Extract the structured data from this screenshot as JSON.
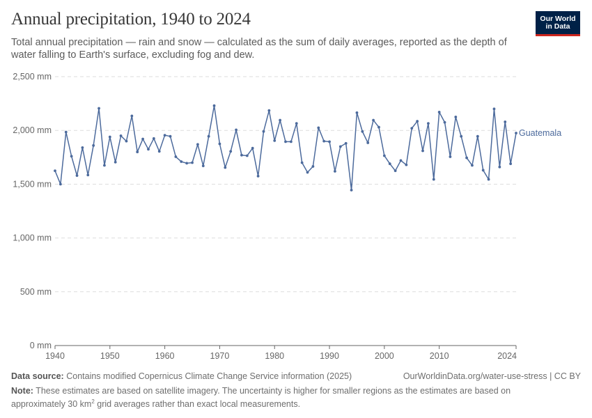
{
  "header": {
    "title": "Annual precipitation, 1940 to 2024",
    "subtitle": "Total annual precipitation — rain and snow — calculated as the sum of daily averages, reported as the depth of water falling to Earth's surface, excluding fog and dew.",
    "logo_line1": "Our World",
    "logo_line2": "in Data"
  },
  "footer": {
    "source_label": "Data source:",
    "source_text": "Contains modified Copernicus Climate Change Service information (2025)",
    "url_text": "OurWorldinData.org/water-use-stress | CC BY",
    "note_label": "Note:",
    "note_text_a": "These estimates are based on satellite imagery. The uncertainty is higher for smaller regions as the estimates are based on approximately 30 km",
    "note_sup": "2",
    "note_text_b": " grid averages rather than exact local measurements."
  },
  "colors": {
    "series": "#4c6a9c",
    "grid": "#dddddd",
    "axis": "#666666",
    "logo_bg": "#002147",
    "logo_accent": "#ce261e"
  },
  "chart_data": {
    "type": "line",
    "title": "Annual precipitation, 1940 to 2024",
    "y_unit": "mm",
    "ylim": [
      0,
      2500
    ],
    "xlim": [
      1940,
      2024
    ],
    "y_ticks": [
      0,
      500,
      1000,
      1500,
      2000,
      2500
    ],
    "y_tick_labels": [
      "0 mm",
      "500 mm",
      "1,000 mm",
      "1,500 mm",
      "2,000 mm",
      "2,500 mm"
    ],
    "x_ticks": [
      1940,
      1950,
      1960,
      1970,
      1980,
      1990,
      2000,
      2010,
      2024
    ],
    "x_tick_labels": [
      "1940",
      "1950",
      "1960",
      "1970",
      "1980",
      "1990",
      "2000",
      "2010",
      "2024"
    ],
    "grid": "horizontal dashed",
    "series": [
      {
        "name": "Guatemala",
        "x": [
          1940,
          1941,
          1942,
          1943,
          1944,
          1945,
          1946,
          1947,
          1948,
          1949,
          1950,
          1951,
          1952,
          1953,
          1954,
          1955,
          1956,
          1957,
          1958,
          1959,
          1960,
          1961,
          1962,
          1963,
          1964,
          1965,
          1966,
          1967,
          1968,
          1969,
          1970,
          1971,
          1972,
          1973,
          1974,
          1975,
          1976,
          1977,
          1978,
          1979,
          1980,
          1981,
          1982,
          1983,
          1984,
          1985,
          1986,
          1987,
          1988,
          1989,
          1990,
          1991,
          1992,
          1993,
          1994,
          1995,
          1996,
          1997,
          1998,
          1999,
          2000,
          2001,
          2002,
          2003,
          2004,
          2005,
          2006,
          2007,
          2008,
          2009,
          2010,
          2011,
          2012,
          2013,
          2014,
          2015,
          2016,
          2017,
          2018,
          2019,
          2020,
          2021,
          2022,
          2023,
          2024
        ],
        "y": [
          1625,
          1500,
          1985,
          1760,
          1580,
          1840,
          1585,
          1860,
          2205,
          1675,
          1940,
          1705,
          1950,
          1900,
          2135,
          1800,
          1920,
          1825,
          1925,
          1805,
          1955,
          1945,
          1755,
          1710,
          1695,
          1700,
          1870,
          1670,
          1945,
          2230,
          1875,
          1655,
          1805,
          2005,
          1770,
          1765,
          1835,
          1575,
          1990,
          2185,
          1905,
          2095,
          1895,
          1895,
          2065,
          1700,
          1610,
          1665,
          2025,
          1900,
          1895,
          1620,
          1850,
          1880,
          1445,
          2165,
          1990,
          1885,
          2095,
          2030,
          1765,
          1690,
          1625,
          1720,
          1680,
          2020,
          2085,
          1810,
          2065,
          1545,
          2170,
          2075,
          1755,
          2125,
          1945,
          1745,
          1675,
          1945,
          1630,
          1545,
          2200,
          1660,
          2080,
          1690,
          1975
        ]
      }
    ]
  }
}
